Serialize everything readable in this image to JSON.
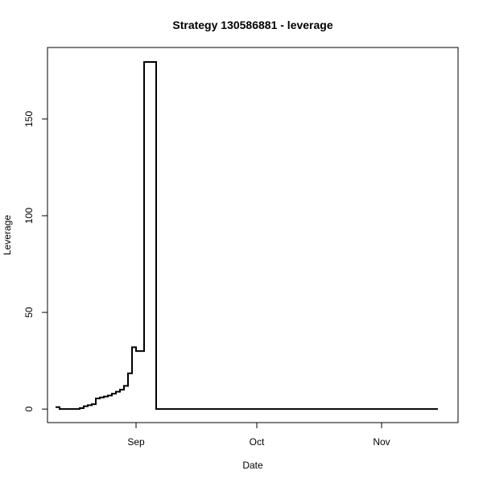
{
  "chart_data": {
    "type": "line",
    "title": "Strategy 130586881 - leverage",
    "xlabel": "Date",
    "ylabel": "Leverage",
    "x_axis": {
      "type": "date",
      "min": "2014-08-10",
      "max": "2014-11-20",
      "ticks": [
        {
          "value": "2014-09-01",
          "label": "Sep"
        },
        {
          "value": "2014-10-01",
          "label": "Oct"
        },
        {
          "value": "2014-11-01",
          "label": "Nov"
        }
      ]
    },
    "y_axis": {
      "min": -7,
      "max": 187,
      "ticks": [
        0,
        50,
        100,
        150
      ]
    },
    "grid": false,
    "legend": "none",
    "line_color": "#000000",
    "series": [
      {
        "step": "post",
        "points": [
          [
            "2014-08-12",
            1
          ],
          [
            "2014-08-13",
            0
          ],
          [
            "2014-08-17",
            0
          ],
          [
            "2014-08-18",
            0.5
          ],
          [
            "2014-08-19",
            1.5
          ],
          [
            "2014-08-20",
            2
          ],
          [
            "2014-08-21",
            2.5
          ],
          [
            "2014-08-22",
            5.5
          ],
          [
            "2014-08-23",
            6
          ],
          [
            "2014-08-24",
            6.5
          ],
          [
            "2014-08-25",
            7
          ],
          [
            "2014-08-26",
            8
          ],
          [
            "2014-08-27",
            9
          ],
          [
            "2014-08-28",
            10
          ],
          [
            "2014-08-29",
            12
          ],
          [
            "2014-08-30",
            18.5
          ],
          [
            "2014-08-31",
            32
          ],
          [
            "2014-09-01",
            30
          ],
          [
            "2014-09-02",
            30
          ],
          [
            "2014-09-03",
            179.5
          ],
          [
            "2014-09-06",
            0
          ],
          [
            "2014-11-15",
            0
          ]
        ]
      }
    ]
  }
}
